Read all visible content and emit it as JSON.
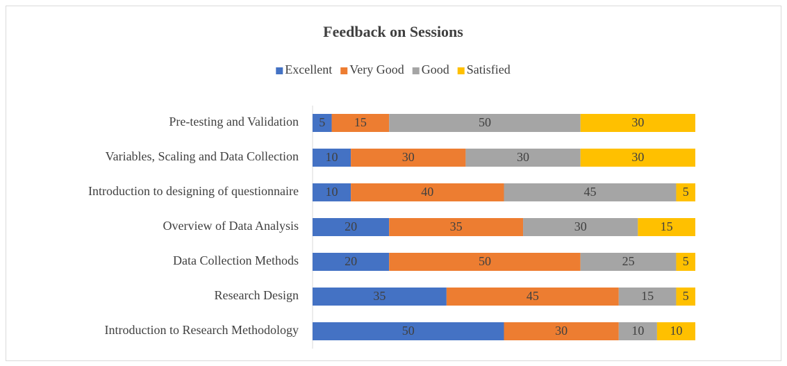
{
  "chart_data": {
    "type": "stacked-bar-horizontal",
    "title": "Feedback on Sessions",
    "categories": [
      "Pre-testing and Validation",
      "Variables, Scaling and Data Collection",
      "Introduction to designing of questionnaire",
      "Overview of Data Analysis",
      "Data Collection Methods",
      "Research Design",
      "Introduction to Research Methodology"
    ],
    "series": [
      {
        "name": "Excellent",
        "color": "#4472c4",
        "values": [
          5,
          10,
          10,
          20,
          20,
          35,
          50
        ]
      },
      {
        "name": "Very Good",
        "color": "#ed7d31",
        "values": [
          15,
          30,
          40,
          35,
          50,
          45,
          30
        ]
      },
      {
        "name": "Good",
        "color": "#a5a5a5",
        "values": [
          50,
          30,
          45,
          30,
          25,
          15,
          10
        ]
      },
      {
        "name": "Satisfied",
        "color": "#ffc000",
        "values": [
          30,
          30,
          5,
          15,
          5,
          5,
          10
        ]
      }
    ],
    "xlim": [
      0,
      100
    ],
    "legend": "top"
  }
}
